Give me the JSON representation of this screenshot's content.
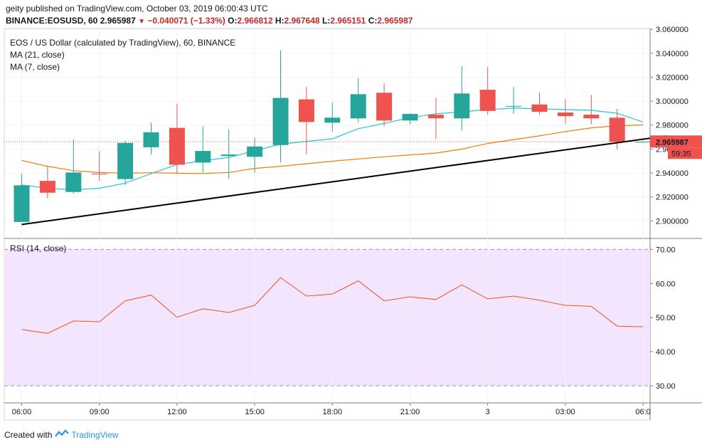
{
  "header": {
    "line1": "geity published on TradingView.com, October 03, 2019 06:00:43 UTC",
    "symbol": "BINANCE:EOSUSD, 60",
    "last": "2.965987",
    "change": "−0.040071 (−1.33%)",
    "o_label": "O:",
    "o": "2.966812",
    "h_label": "H:",
    "h": "2.967648",
    "l_label": "L:",
    "l": "2.965151",
    "c_label": "C:",
    "c": "2.965987"
  },
  "footer": {
    "created": "Created with",
    "brand": "TradingView"
  },
  "colors": {
    "up": "#26a69a",
    "down": "#ef5350",
    "ma21": "#26c6da",
    "ma7": "#f57c00",
    "rsi": "#f4511e",
    "rsi_band": "#f3e5fd"
  },
  "chart_data": [
    {
      "type": "candlestick",
      "title": "EOS / US Dollar (calculated by TradingView), 60, BINANCE",
      "series_labels": [
        "MA (21, close)",
        "MA (7, close)"
      ],
      "x_ticks": [
        "06:00",
        "09:00",
        "12:00",
        "15:00",
        "18:00",
        "21:00",
        "3",
        "03:00",
        "06:0"
      ],
      "y_ticks": [
        "2.900000",
        "2.920000",
        "2.940000",
        "2.960000",
        "2.980000",
        "3.000000",
        "3.020000",
        "3.040000",
        "3.060000"
      ],
      "ylim": [
        2.8865,
        3.0607
      ],
      "price_label": "2.965987",
      "countdown_label": "59:35",
      "candles": [
        {
          "o": 2.8991,
          "h": 2.9392,
          "l": 2.8991,
          "c": 2.9297
        },
        {
          "o": 2.9334,
          "h": 2.9458,
          "l": 2.9188,
          "c": 2.9235
        },
        {
          "o": 2.9241,
          "h": 2.968,
          "l": 2.9226,
          "c": 2.9404
        },
        {
          "o": 2.9395,
          "h": 2.9581,
          "l": 2.9334,
          "c": 2.9389
        },
        {
          "o": 2.9349,
          "h": 2.9667,
          "l": 2.93,
          "c": 2.9651
        },
        {
          "o": 2.9615,
          "h": 2.982,
          "l": 2.9555,
          "c": 2.974
        },
        {
          "o": 2.9777,
          "h": 2.9978,
          "l": 2.9395,
          "c": 2.9469
        },
        {
          "o": 2.9487,
          "h": 2.9789,
          "l": 2.9404,
          "c": 2.9584
        },
        {
          "o": 2.9542,
          "h": 2.9764,
          "l": 2.9352,
          "c": 2.9554
        },
        {
          "o": 2.9535,
          "h": 2.9695,
          "l": 2.9404,
          "c": 2.9621
        },
        {
          "o": 2.9633,
          "h": 3.0426,
          "l": 2.9487,
          "c": 3.0027
        },
        {
          "o": 3.0015,
          "h": 3.0119,
          "l": 2.9555,
          "c": 2.9826
        },
        {
          "o": 2.982,
          "h": 2.999,
          "l": 2.9746,
          "c": 2.9862
        },
        {
          "o": 2.9856,
          "h": 3.0194,
          "l": 2.982,
          "c": 3.0058
        },
        {
          "o": 3.007,
          "h": 3.015,
          "l": 2.9789,
          "c": 2.9838
        },
        {
          "o": 2.9838,
          "h": 2.9899,
          "l": 2.9807,
          "c": 2.9893
        },
        {
          "o": 2.9887,
          "h": 3.0027,
          "l": 2.9685,
          "c": 2.9856
        },
        {
          "o": 2.9856,
          "h": 3.0291,
          "l": 2.9752,
          "c": 3.0064
        },
        {
          "o": 3.0095,
          "h": 3.0285,
          "l": 2.9887,
          "c": 2.9918
        },
        {
          "o": 2.996,
          "h": 3.0119,
          "l": 2.9893,
          "c": 2.996
        },
        {
          "o": 2.9972,
          "h": 3.007,
          "l": 2.9887,
          "c": 2.9911
        },
        {
          "o": 2.9905,
          "h": 3.0015,
          "l": 2.9813,
          "c": 2.9875
        },
        {
          "o": 2.9887,
          "h": 3.0052,
          "l": 2.9807,
          "c": 2.9856
        },
        {
          "o": 2.9862,
          "h": 2.9936,
          "l": 2.9597,
          "c": 2.966
        },
        {
          "o": 2.966,
          "h": 2.9668,
          "l": 2.9652,
          "c": 2.966
        }
      ],
      "ma21": [
        2.93,
        2.9272,
        2.926,
        2.9272,
        2.9315,
        2.9395,
        2.9471,
        2.9502,
        2.953,
        2.9585,
        2.9641,
        2.9664,
        2.9685,
        2.977,
        2.9814,
        2.9862,
        2.9895,
        2.9911,
        2.9929,
        2.9942,
        2.9936,
        2.9929,
        2.9924,
        2.9899,
        2.9826
      ],
      "ma7": [
        2.9505,
        2.9456,
        2.9419,
        2.9404,
        2.9398,
        2.9402,
        2.9398,
        2.9395,
        2.9404,
        2.9438,
        2.9456,
        2.9477,
        2.9498,
        2.9517,
        2.9535,
        2.9551,
        2.9566,
        2.96,
        2.9646,
        2.9679,
        2.971,
        2.9746,
        2.9777,
        2.9795,
        2.9801
      ],
      "trendline": [
        {
          "i": 0,
          "y": 2.897
        },
        {
          "i": 24.9,
          "y": 2.9709
        }
      ]
    },
    {
      "type": "line",
      "title": "RSI (14, close)",
      "y_ticks": [
        "30.00",
        "40.00",
        "50.00",
        "60.00",
        "70.00"
      ],
      "ylim": [
        25,
        73
      ],
      "band": [
        30,
        70
      ],
      "values": [
        46.5,
        45.4,
        49.0,
        48.8,
        54.9,
        56.6,
        50.1,
        52.6,
        51.5,
        53.6,
        61.7,
        56.3,
        56.9,
        60.8,
        54.9,
        56.1,
        55.3,
        59.6,
        55.5,
        56.3,
        55.1,
        53.6,
        53.3,
        47.5,
        47.3
      ]
    }
  ]
}
